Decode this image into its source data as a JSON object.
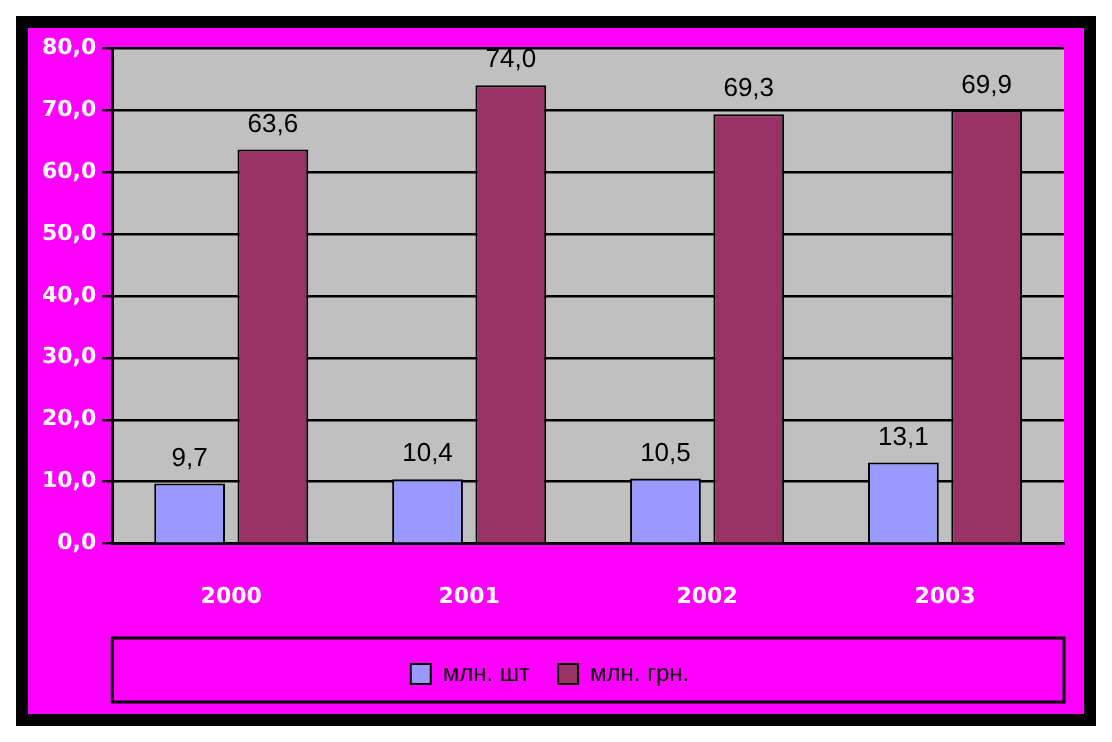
{
  "chart_data": {
    "type": "bar",
    "categories": [
      "2000",
      "2001",
      "2002",
      "2003"
    ],
    "series": [
      {
        "name": "млн. шт",
        "color": "#9999ff",
        "values": [
          9.7,
          10.4,
          10.5,
          13.1
        ],
        "value_labels": [
          "9,7",
          "10,4",
          "10,5",
          "13,1"
        ]
      },
      {
        "name": "млн. грн.",
        "color": "#993366",
        "values": [
          63.6,
          74.0,
          69.3,
          69.9
        ],
        "value_labels": [
          "63,6",
          "74,0",
          "69,3",
          "69,9"
        ]
      }
    ],
    "ylim": [
      0,
      80
    ],
    "yticks": [
      {
        "value": 0,
        "label": "0,0"
      },
      {
        "value": 10,
        "label": "10,0"
      },
      {
        "value": 20,
        "label": "20,0"
      },
      {
        "value": 30,
        "label": "30,0"
      },
      {
        "value": 40,
        "label": "40,0"
      },
      {
        "value": 50,
        "label": "50,0"
      },
      {
        "value": 60,
        "label": "60,0"
      },
      {
        "value": 70,
        "label": "70,0"
      },
      {
        "value": 80,
        "label": "80,0"
      }
    ],
    "grid": "y",
    "legend": "bottom"
  }
}
